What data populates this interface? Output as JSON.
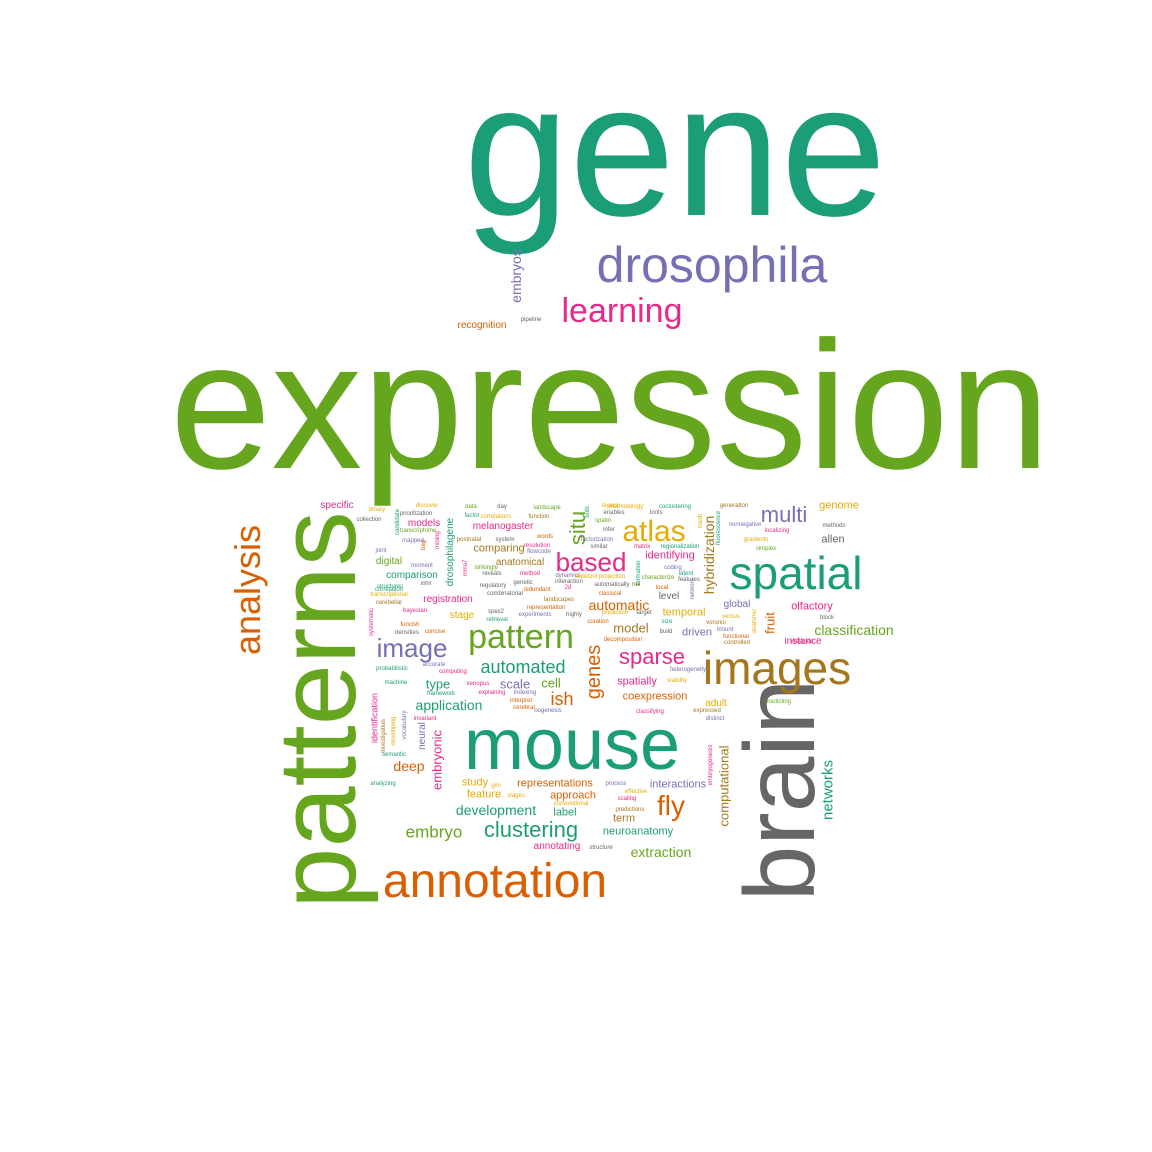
{
  "palette": {
    "teal": "#1b9e77",
    "green": "#66a61e",
    "orange": "#d95f02",
    "purple": "#7570b3",
    "magenta": "#e7298a",
    "gold": "#e6ab02",
    "brown": "#a6761d",
    "gray": "#666666"
  },
  "words": [
    {
      "text": "gene",
      "color": "teal"
    },
    {
      "text": "expression",
      "color": "green"
    },
    {
      "text": "patterns",
      "color": "green"
    },
    {
      "text": "brain",
      "color": "gray"
    },
    {
      "text": "mouse",
      "color": "teal"
    },
    {
      "text": "drosophila",
      "color": "purple"
    },
    {
      "text": "images",
      "color": "brown"
    },
    {
      "text": "spatial",
      "color": "teal"
    },
    {
      "text": "annotation",
      "color": "orange"
    },
    {
      "text": "analysis",
      "color": "orange"
    },
    {
      "text": "learning",
      "color": "magenta"
    },
    {
      "text": "pattern",
      "color": "green"
    },
    {
      "text": "image",
      "color": "purple"
    },
    {
      "text": "atlas",
      "color": "gold"
    },
    {
      "text": "based",
      "color": "magenta"
    },
    {
      "text": "clustering",
      "color": "teal"
    },
    {
      "text": "multi",
      "color": "purple"
    },
    {
      "text": "sparse",
      "color": "magenta"
    },
    {
      "text": "fly",
      "color": "orange"
    },
    {
      "text": "situ",
      "color": "green"
    },
    {
      "text": "genes",
      "color": "orange"
    },
    {
      "text": "automated",
      "color": "teal"
    },
    {
      "text": "embryo",
      "color": "green"
    },
    {
      "text": "ish",
      "color": "orange"
    },
    {
      "text": "embryos",
      "color": "purple"
    },
    {
      "text": "networks",
      "color": "teal"
    },
    {
      "text": "computational",
      "color": "brown"
    },
    {
      "text": "hybridization",
      "color": "brown"
    },
    {
      "text": "classification",
      "color": "green"
    },
    {
      "text": "development",
      "color": "teal"
    },
    {
      "text": "application",
      "color": "teal"
    },
    {
      "text": "automatic",
      "color": "orange"
    },
    {
      "text": "embryonic",
      "color": "magenta"
    },
    {
      "text": "fruit",
      "color": "orange"
    },
    {
      "text": "extraction",
      "color": "green"
    },
    {
      "text": "deep",
      "color": "orange"
    },
    {
      "text": "scale",
      "color": "purple"
    },
    {
      "text": "cell",
      "color": "green"
    },
    {
      "text": "type",
      "color": "teal"
    },
    {
      "text": "model",
      "color": "brown"
    },
    {
      "text": "spatially",
      "color": "magenta"
    },
    {
      "text": "coexpression",
      "color": "orange"
    },
    {
      "text": "interactions",
      "color": "purple"
    },
    {
      "text": "approach",
      "color": "orange"
    },
    {
      "text": "label",
      "color": "teal"
    },
    {
      "text": "feature",
      "color": "gold"
    },
    {
      "text": "study",
      "color": "gold"
    },
    {
      "text": "representations",
      "color": "orange"
    },
    {
      "text": "term",
      "color": "brown"
    },
    {
      "text": "neuroanatomy",
      "color": "teal"
    },
    {
      "text": "annotating",
      "color": "magenta"
    },
    {
      "text": "olfactory",
      "color": "magenta"
    },
    {
      "text": "instance",
      "color": "magenta"
    },
    {
      "text": "temporal",
      "color": "gold"
    },
    {
      "text": "identifying",
      "color": "magenta"
    },
    {
      "text": "driven",
      "color": "purple"
    },
    {
      "text": "global",
      "color": "purple"
    },
    {
      "text": "genome",
      "color": "gold"
    },
    {
      "text": "allen",
      "color": "gray"
    },
    {
      "text": "adult",
      "color": "gold"
    },
    {
      "text": "registration",
      "color": "magenta"
    },
    {
      "text": "stage",
      "color": "gold"
    },
    {
      "text": "comparison",
      "color": "teal"
    },
    {
      "text": "comparing",
      "color": "brown"
    },
    {
      "text": "digital",
      "color": "green"
    },
    {
      "text": "anatomical",
      "color": "brown"
    },
    {
      "text": "melanogaster",
      "color": "magenta"
    },
    {
      "text": "models",
      "color": "magenta"
    },
    {
      "text": "specific",
      "color": "magenta"
    },
    {
      "text": "neural",
      "color": "purple"
    },
    {
      "text": "level",
      "color": "gray"
    },
    {
      "text": "recognition",
      "color": "orange"
    },
    {
      "text": "pipeline",
      "color": "gray"
    },
    {
      "text": "drosophilagene",
      "color": "teal"
    },
    {
      "text": "identification",
      "color": "magenta"
    },
    {
      "text": "predicting",
      "color": "green"
    },
    {
      "text": "classifying",
      "color": "magenta"
    },
    {
      "text": "distinct",
      "color": "purple"
    },
    {
      "text": "expressed",
      "color": "brown"
    },
    {
      "text": "embryogenesis",
      "color": "magenta"
    },
    {
      "text": "process",
      "color": "purple"
    },
    {
      "text": "effective",
      "color": "gold"
    },
    {
      "text": "scaling",
      "color": "magenta"
    },
    {
      "text": "predictions",
      "color": "brown"
    },
    {
      "text": "convolutional",
      "color": "gold"
    },
    {
      "text": "structure",
      "color": "gray"
    },
    {
      "text": "stages",
      "color": "gold"
    },
    {
      "text": "gini",
      "color": "gold"
    },
    {
      "text": "analyzing",
      "color": "teal"
    },
    {
      "text": "semantic",
      "color": "teal"
    },
    {
      "text": "vocabulary",
      "color": "purple"
    },
    {
      "text": "investigation",
      "color": "brown"
    },
    {
      "text": "developing",
      "color": "gold"
    },
    {
      "text": "invariant",
      "color": "magenta"
    },
    {
      "text": "machine",
      "color": "teal"
    },
    {
      "text": "probabilistic",
      "color": "teal"
    },
    {
      "text": "framework",
      "color": "teal"
    },
    {
      "text": "accurate",
      "color": "purple"
    },
    {
      "text": "computing",
      "color": "magenta"
    },
    {
      "text": "xenopus",
      "color": "magenta"
    },
    {
      "text": "explaining",
      "color": "magenta"
    },
    {
      "text": "indexing",
      "color": "purple"
    },
    {
      "text": "interpret",
      "color": "orange"
    },
    {
      "text": "cerebral",
      "color": "orange"
    },
    {
      "text": "oogenesis",
      "color": "purple"
    },
    {
      "text": "stability",
      "color": "gold"
    },
    {
      "text": "instance",
      "color": "magenta"
    },
    {
      "text": "functional",
      "color": "orange"
    },
    {
      "text": "controlled",
      "color": "brown"
    },
    {
      "text": "heterogeneity",
      "color": "purple"
    },
    {
      "text": "mount",
      "color": "purple"
    },
    {
      "text": "voronoi",
      "color": "brown"
    },
    {
      "text": "build",
      "color": "gray"
    },
    {
      "text": "size",
      "color": "teal"
    },
    {
      "text": "target",
      "color": "gray"
    },
    {
      "text": "decomposition",
      "color": "orange"
    },
    {
      "text": "curation",
      "color": "orange"
    },
    {
      "text": "prediction",
      "color": "gold"
    },
    {
      "text": "highly",
      "color": "gray"
    },
    {
      "text": "experiments",
      "color": "purple"
    },
    {
      "text": "retrieval",
      "color": "teal"
    },
    {
      "text": "spex2",
      "color": "gray"
    },
    {
      "text": "representation",
      "color": "orange"
    },
    {
      "text": "landscapes",
      "color": "brown"
    },
    {
      "text": "classical",
      "color": "orange"
    },
    {
      "text": "combinatorial",
      "color": "gray"
    },
    {
      "text": "redundant",
      "color": "orange"
    },
    {
      "text": "regulatory",
      "color": "gray"
    },
    {
      "text": "genetic",
      "color": "gray"
    },
    {
      "text": "interaction",
      "color": "gray"
    },
    {
      "text": "automatically",
      "color": "gray"
    },
    {
      "text": "rna",
      "color": "brown"
    },
    {
      "text": "local",
      "color": "orange"
    },
    {
      "text": "features",
      "color": "gray"
    },
    {
      "text": "latent",
      "color": "teal"
    },
    {
      "text": "coding",
      "color": "purple"
    },
    {
      "text": "characterize",
      "color": "green"
    },
    {
      "text": "projection",
      "color": "gold"
    },
    {
      "text": "reveals",
      "color": "gray"
    },
    {
      "text": "method",
      "color": "magenta"
    },
    {
      "text": "dynamics",
      "color": "purple"
    },
    {
      "text": "widetool",
      "color": "gold"
    },
    {
      "text": "2d",
      "color": "magenta"
    },
    {
      "text": "mma7",
      "color": "magenta"
    },
    {
      "text": "strikingly",
      "color": "green"
    },
    {
      "text": "xlmr",
      "color": "gray"
    },
    {
      "text": "bayesian",
      "color": "magenta"
    },
    {
      "text": "funcish",
      "color": "orange"
    },
    {
      "text": "densities",
      "color": "gray"
    },
    {
      "text": "concise",
      "color": "orange"
    },
    {
      "text": "cerebellar",
      "color": "brown"
    },
    {
      "text": "transcriptional",
      "color": "gold"
    },
    {
      "text": "structures",
      "color": "teal"
    },
    {
      "text": "correlation",
      "color": "teal"
    },
    {
      "text": "systematic",
      "color": "magenta"
    },
    {
      "text": "moment",
      "color": "purple"
    },
    {
      "text": "mapped",
      "color": "purple"
    },
    {
      "text": "bag",
      "color": "orange"
    },
    {
      "text": "mining",
      "color": "magenta"
    },
    {
      "text": "joint",
      "color": "purple"
    },
    {
      "text": "transcriptome",
      "color": "green"
    },
    {
      "text": "candidate",
      "color": "teal"
    },
    {
      "text": "prioritization",
      "color": "gray"
    },
    {
      "text": "discover",
      "color": "gold"
    },
    {
      "text": "binary",
      "color": "gold"
    },
    {
      "text": "collection",
      "color": "gray"
    },
    {
      "text": "data",
      "color": "green"
    },
    {
      "text": "factor",
      "color": "teal"
    },
    {
      "text": "day",
      "color": "gray"
    },
    {
      "text": "correlations",
      "color": "gold"
    },
    {
      "text": "postnatal",
      "color": "brown"
    },
    {
      "text": "system",
      "color": "gray"
    },
    {
      "text": "function",
      "color": "brown"
    },
    {
      "text": "landscape",
      "color": "green"
    },
    {
      "text": "words",
      "color": "orange"
    },
    {
      "text": "resolution",
      "color": "magenta"
    },
    {
      "text": "flowcode",
      "color": "purple"
    },
    {
      "text": "bulb",
      "color": "teal"
    },
    {
      "text": "enables",
      "color": "gray"
    },
    {
      "text": "methodology",
      "color": "gold"
    },
    {
      "text": "coclustering",
      "color": "teal"
    },
    {
      "text": "layers",
      "color": "gold"
    },
    {
      "text": "spatio",
      "color": "green"
    },
    {
      "text": "infer",
      "color": "gray"
    },
    {
      "text": "tools",
      "color": "gray"
    },
    {
      "text": "factorization",
      "color": "purple"
    },
    {
      "text": "similar",
      "color": "gray"
    },
    {
      "text": "matrix",
      "color": "magenta"
    },
    {
      "text": "regionalization",
      "color": "teal"
    },
    {
      "text": "mesh",
      "color": "gold"
    },
    {
      "text": "fluorescence",
      "color": "teal"
    },
    {
      "text": "generation",
      "color": "brown"
    },
    {
      "text": "nonnegative",
      "color": "purple"
    },
    {
      "text": "localizing",
      "color": "magenta"
    },
    {
      "text": "gradients",
      "color": "gold"
    },
    {
      "text": "simplex",
      "color": "green"
    },
    {
      "text": "methods",
      "color": "gray"
    },
    {
      "text": "formation",
      "color": "teal"
    },
    {
      "text": "network",
      "color": "purple"
    },
    {
      "text": "versus",
      "color": "gold"
    },
    {
      "text": "anatomic",
      "color": "gold"
    },
    {
      "text": "block",
      "color": "gray"
    },
    {
      "text": "dictionary",
      "color": "green"
    }
  ]
}
